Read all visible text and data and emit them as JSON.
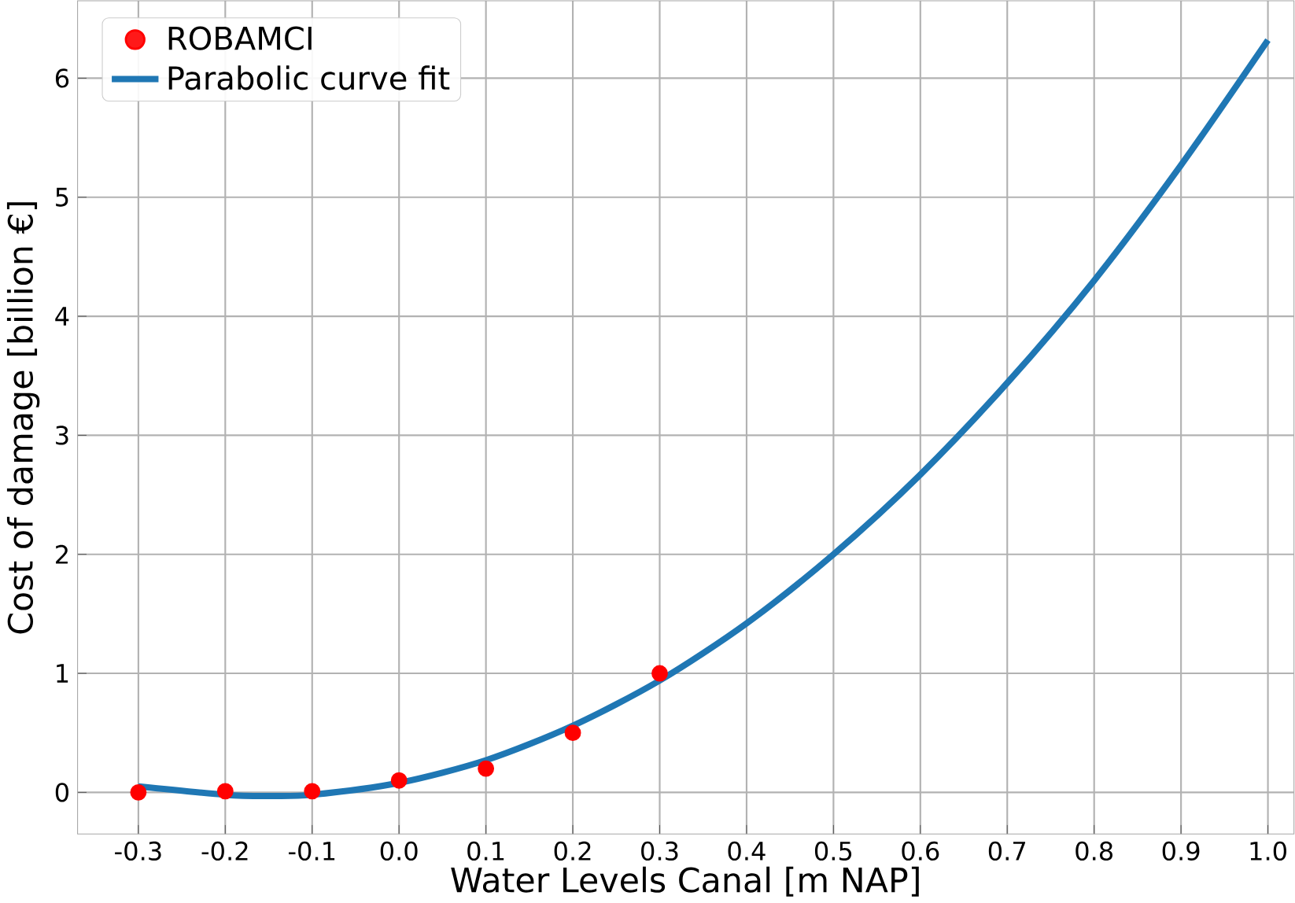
{
  "chart_data": {
    "type": "scatter",
    "xlabel": "Water Levels Canal [m NAP]",
    "ylabel": "Cost of damage [billion €]",
    "xlim": [
      -0.37,
      1.03
    ],
    "ylim": [
      -0.35,
      6.65
    ],
    "xticks": [
      {
        "value": -0.3,
        "label": "-0.3"
      },
      {
        "value": -0.2,
        "label": "-0.2"
      },
      {
        "value": -0.1,
        "label": "-0.1"
      },
      {
        "value": 0,
        "label": "0.0"
      },
      {
        "value": 0.1,
        "label": "0.1"
      },
      {
        "value": 0.2,
        "label": "0.2"
      },
      {
        "value": 0.3,
        "label": "0.3"
      },
      {
        "value": 0.4,
        "label": "0.4"
      },
      {
        "value": 0.5,
        "label": "0.5"
      },
      {
        "value": 0.6,
        "label": "0.6"
      },
      {
        "value": 0.7,
        "label": "0.7"
      },
      {
        "value": 0.8,
        "label": "0.8"
      },
      {
        "value": 0.9,
        "label": "0.9"
      },
      {
        "value": 1.0,
        "label": "1.0"
      }
    ],
    "yticks": [
      0,
      1,
      2,
      3,
      4,
      5,
      6
    ],
    "grid": true,
    "legend": "top left",
    "series": [
      {
        "name": "ROBAMCI",
        "type": "scatter",
        "marker": "circle",
        "color": "#ff0000",
        "x": [
          -0.3,
          -0.2,
          -0.1,
          0.0,
          0.1,
          0.2,
          0.3
        ],
        "values": [
          0.0,
          0.01,
          0.01,
          0.1,
          0.2,
          0.5,
          1.0
        ]
      },
      {
        "name": "Parabolic curve fit",
        "type": "line",
        "marker": "none",
        "line_style": "solid",
        "color": "#1f77b4",
        "x": [
          -0.3,
          -0.2,
          -0.15,
          -0.1,
          0.0,
          0.1,
          0.2,
          0.3,
          0.4,
          0.5,
          0.6,
          0.7,
          0.8,
          0.9,
          1.0
        ],
        "values": [
          0.05,
          -0.02,
          -0.03,
          -0.02,
          0.08,
          0.27,
          0.56,
          0.94,
          1.42,
          2.0,
          2.67,
          3.44,
          4.3,
          5.27,
          6.32
        ]
      }
    ]
  }
}
